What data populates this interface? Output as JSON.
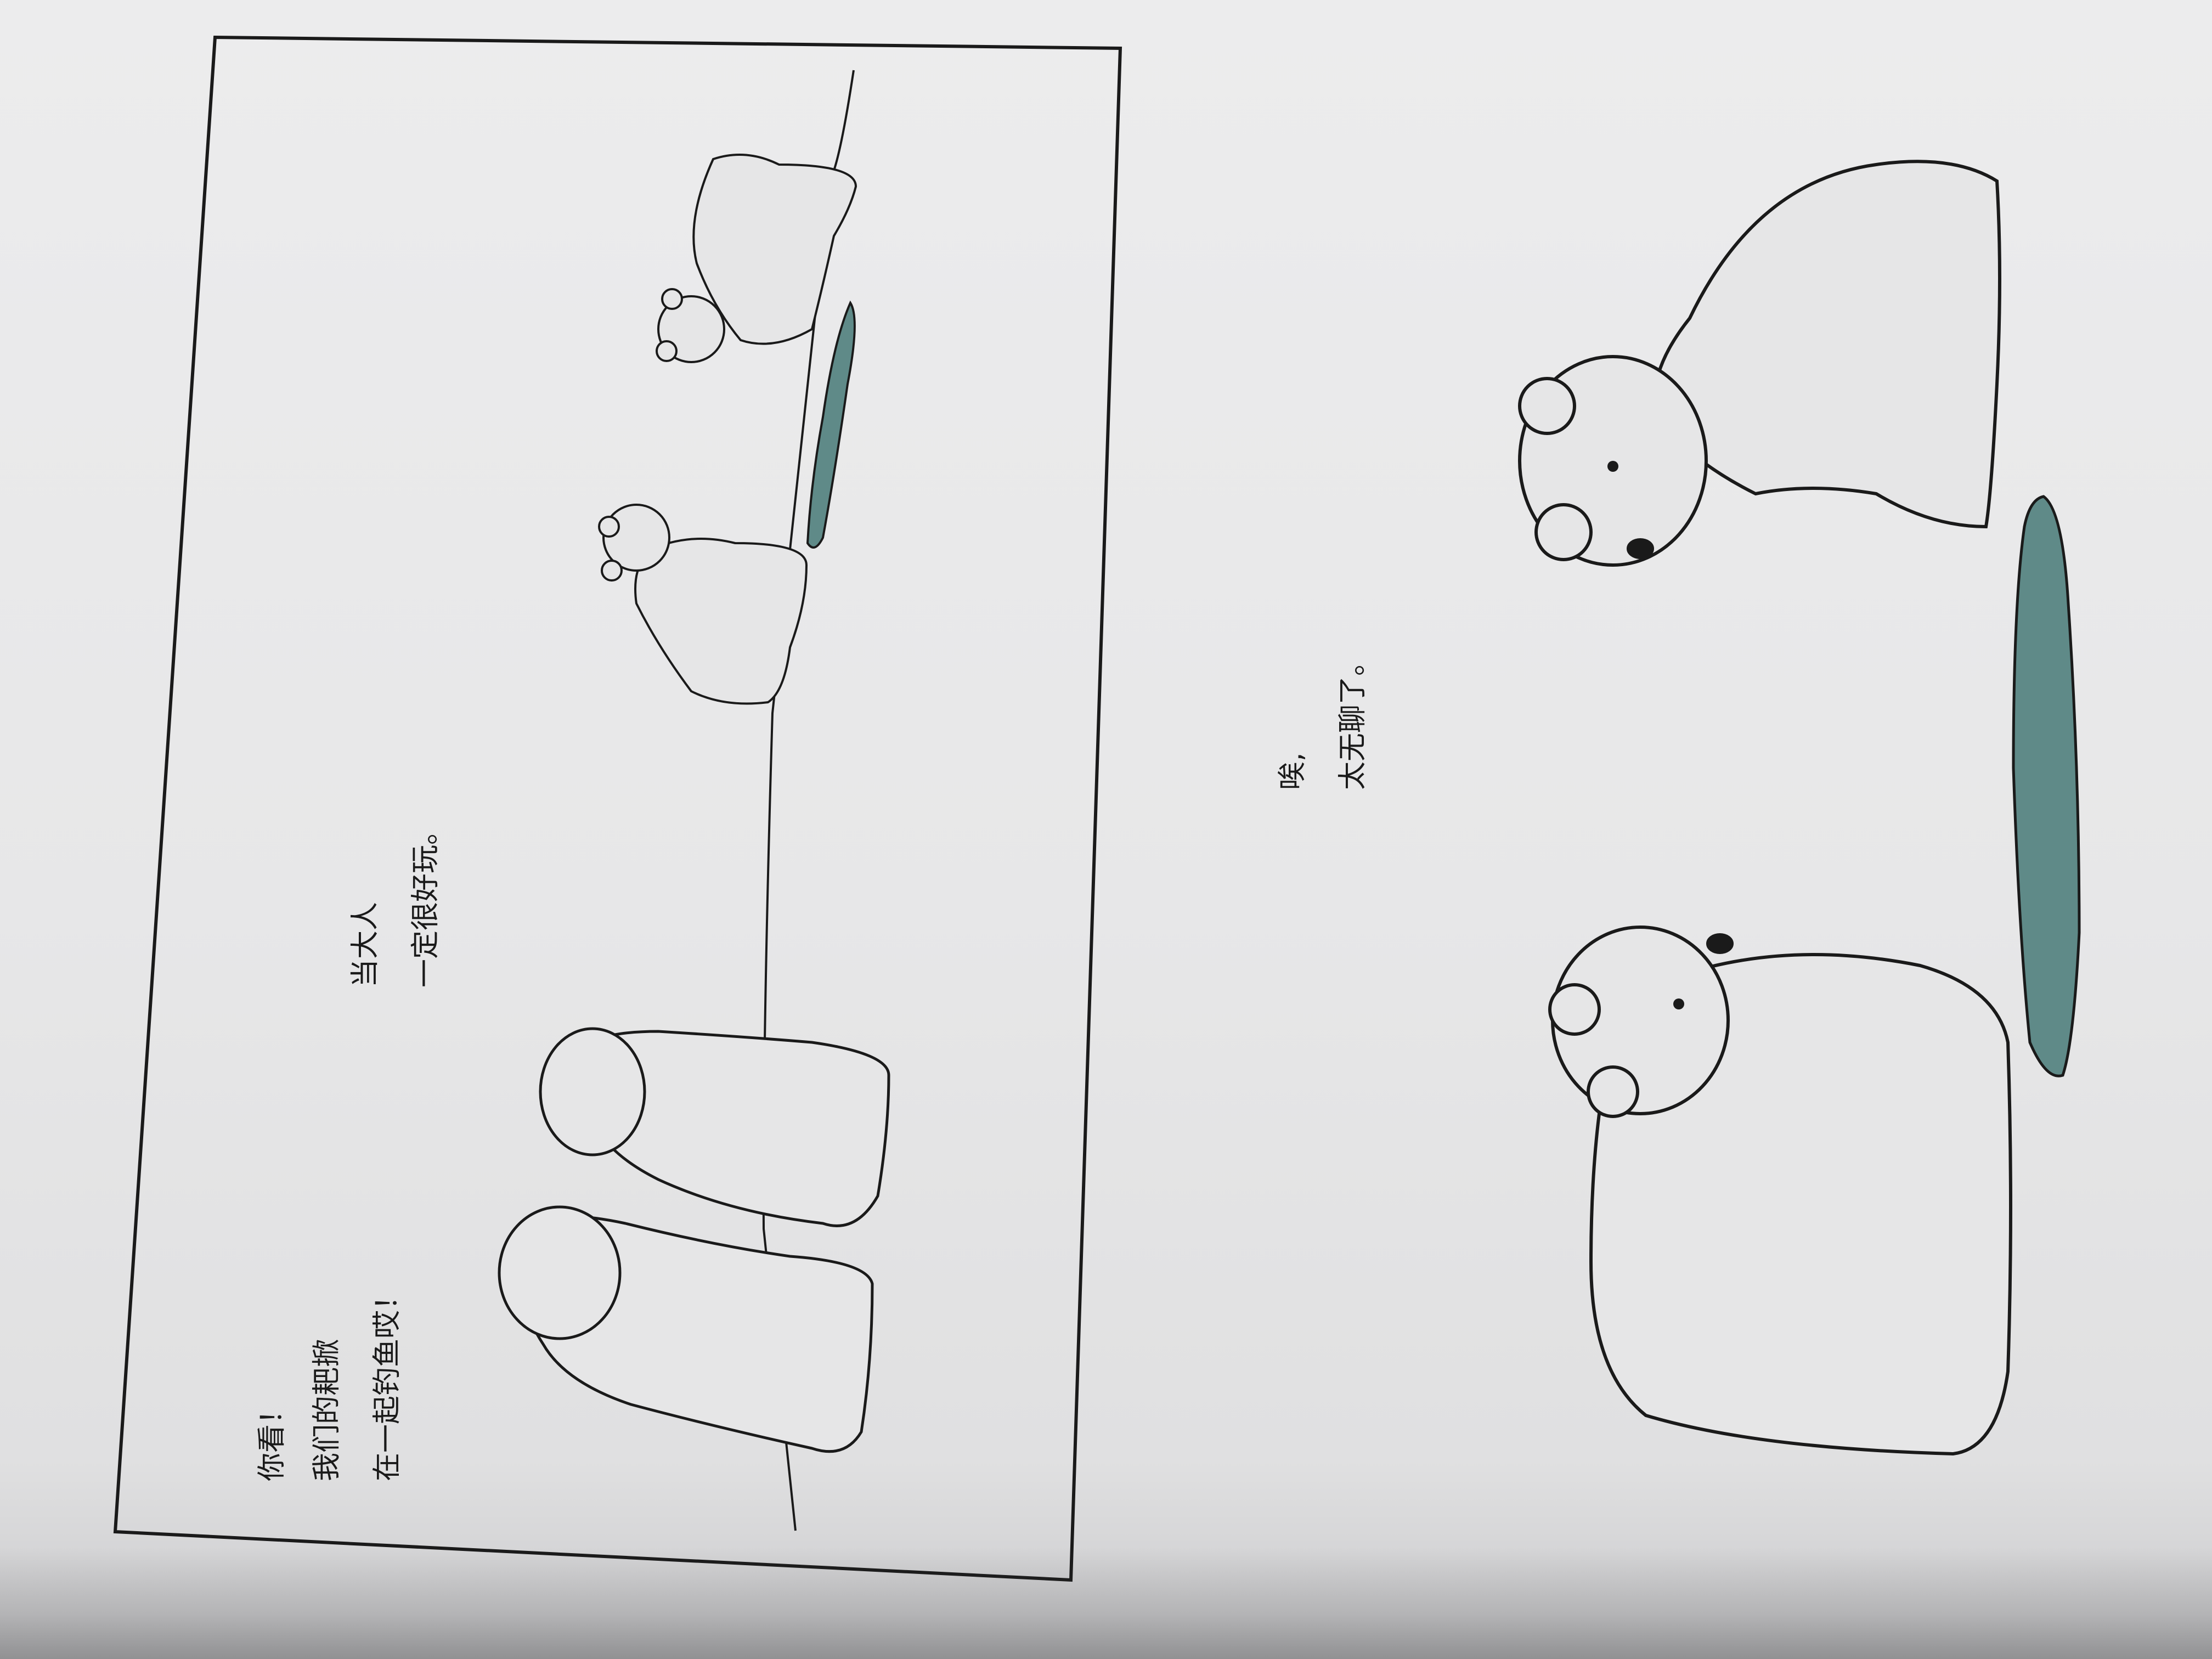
{
  "panel_top": {
    "caption_lines": [
      "你看！",
      "我们的耙掀",
      "在一起钓鱼哎！"
    ],
    "caption_right_lines": [
      "当大人",
      "一定很好玩。"
    ]
  },
  "panel_bottom": {
    "caption_lines": [
      "唉,",
      "太无聊了。"
    ]
  },
  "colors": {
    "paper": "#e9e9ea",
    "ink": "#1a1a1a",
    "bear_fill": "#e6e6e7",
    "water": "#5f8a88"
  }
}
